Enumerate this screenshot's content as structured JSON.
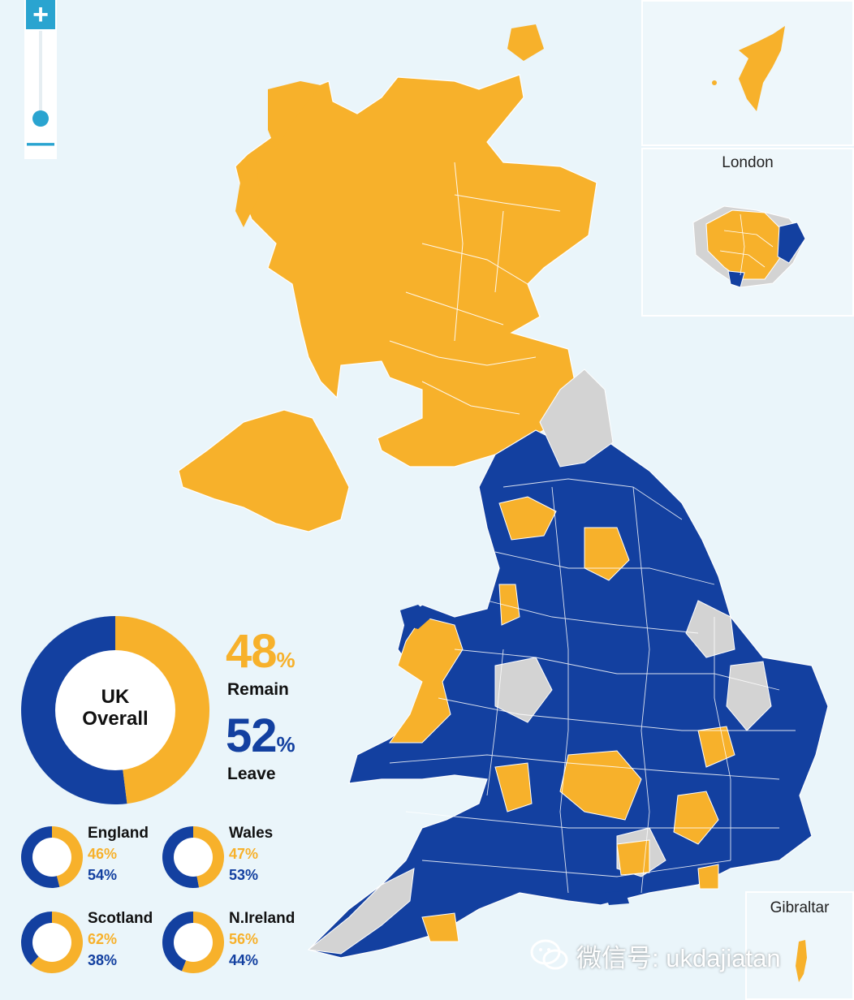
{
  "colors": {
    "remain": "#f7b12b",
    "leave": "#1340a0",
    "no_data": "#d3d3d3",
    "sea": "#eaf5fa",
    "zoom_accent": "#2aa4d0"
  },
  "zoom": {
    "plus_icon": "plus-icon",
    "minus_icon": "minus-icon"
  },
  "insets": {
    "london_label": "London",
    "gibraltar_label": "Gibraltar"
  },
  "results": {
    "overall": {
      "label_line1": "UK",
      "label_line2": "Overall",
      "remain": 48,
      "leave": 52,
      "remain_text": "48",
      "leave_text": "52",
      "unit": "%",
      "remain_word": "Remain",
      "leave_word": "Leave"
    },
    "regions": [
      {
        "name": "England",
        "remain": 46,
        "leave": 54,
        "remain_text": "46%",
        "leave_text": "54%"
      },
      {
        "name": "Wales",
        "remain": 47,
        "leave": 53,
        "remain_text": "47%",
        "leave_text": "53%"
      },
      {
        "name": "Scotland",
        "remain": 62,
        "leave": 38,
        "remain_text": "62%",
        "leave_text": "38%"
      },
      {
        "name": "N.Ireland",
        "remain": 56,
        "leave": 44,
        "remain_text": "56%",
        "leave_text": "44%"
      }
    ]
  },
  "watermark": {
    "icon": "wechat-icon",
    "text": "微信号: ukdajiatan"
  }
}
